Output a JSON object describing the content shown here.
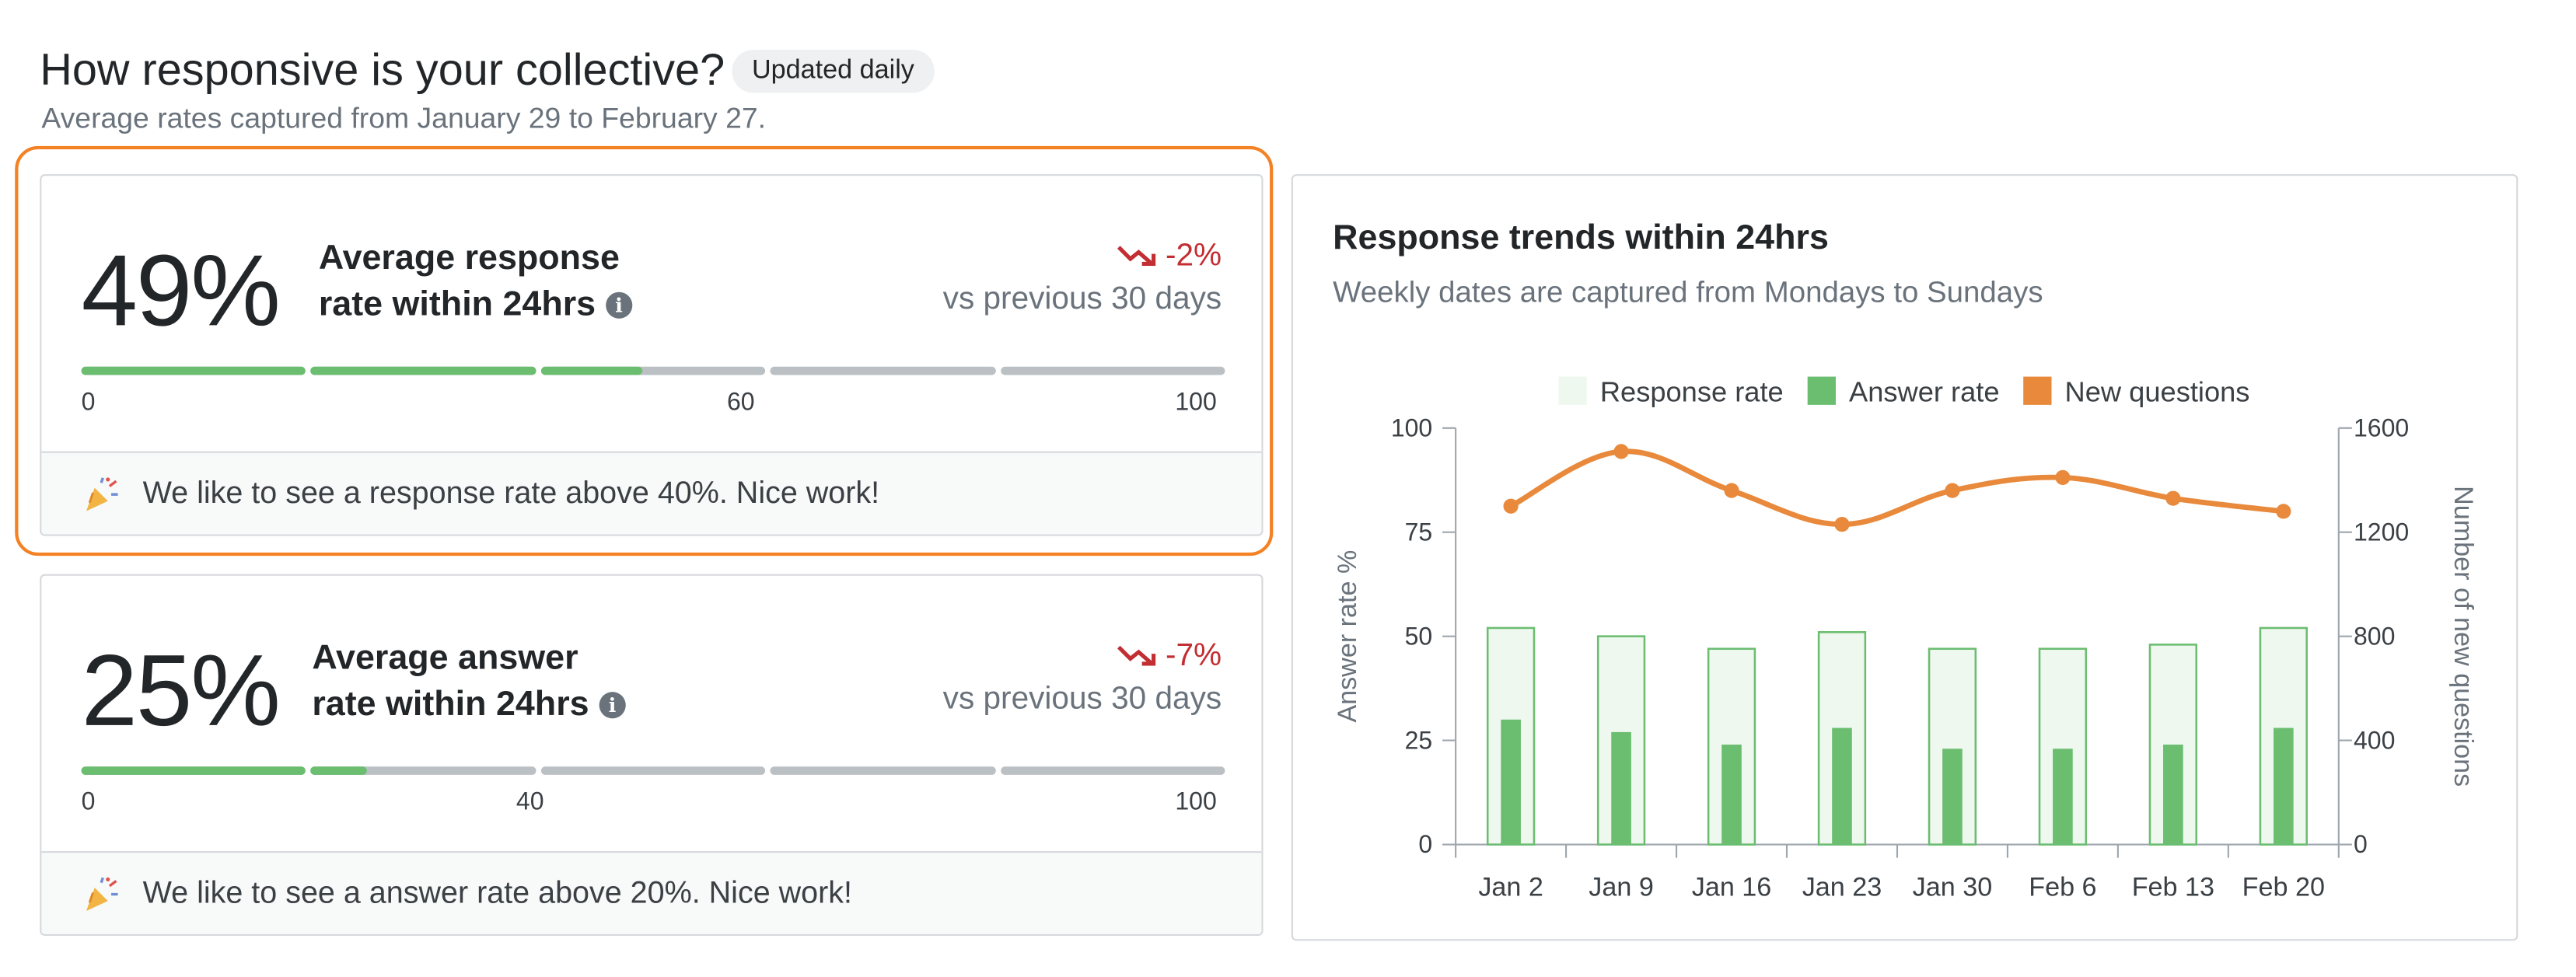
{
  "header": {
    "title": "How responsive is your collective?",
    "badge": "Updated daily",
    "subtitle": "Average rates captured from January 29 to February 27."
  },
  "stats": [
    {
      "value": "49%",
      "label_line1": "Average response",
      "label_line2": "rate within 24hrs",
      "delta": "-2%",
      "delta_caption": "vs previous 30 days",
      "progress_fraction": 0.49,
      "scale_start": "0",
      "scale_mid": "60",
      "scale_end": "100",
      "footer": "We like to see a response rate above 40%. Nice work!"
    },
    {
      "value": "25%",
      "label_line1": "Average answer",
      "label_line2": "rate within 24hrs",
      "delta": "-7%",
      "delta_caption": "vs previous 30 days",
      "progress_fraction": 0.25,
      "scale_start": "0",
      "scale_mid": "40",
      "scale_end": "100",
      "footer": "We like to see a answer rate above 20%. Nice work!"
    }
  ],
  "colors": {
    "accent_highlight": "#f48225",
    "response_fill": "#eef8ef",
    "response_stroke": "#6bbd70",
    "answer_bar": "#6bbd70",
    "new_questions_line": "#e8893c",
    "negative_delta": "#c22e32",
    "progress_track": "#bbc0c4"
  },
  "icons": {
    "info": "info-icon",
    "trend_down": "trend-down-icon",
    "party": "party-popper-icon"
  },
  "chart_data": {
    "type": "bar",
    "title": "Response trends within 24hrs",
    "subtitle": "Weekly dates are captured from Mondays to Sundays",
    "categories": [
      "Jan 2",
      "Jan 9",
      "Jan 16",
      "Jan 23",
      "Jan 30",
      "Feb 6",
      "Feb 13",
      "Feb 20"
    ],
    "series": [
      {
        "name": "Response rate",
        "type": "bar",
        "axis": "left",
        "values": [
          52,
          50,
          47,
          51,
          47,
          47,
          48,
          52
        ]
      },
      {
        "name": "Answer rate",
        "type": "bar",
        "axis": "left",
        "values": [
          30,
          27,
          24,
          28,
          23,
          23,
          24,
          28
        ]
      },
      {
        "name": "New questions",
        "type": "line",
        "axis": "right",
        "values": [
          1300,
          1510,
          1360,
          1230,
          1360,
          1410,
          1330,
          1280
        ]
      }
    ],
    "ylabel": "Answer rate %",
    "y2label": "Number of new questions",
    "ylim": [
      0,
      100
    ],
    "y2lim": [
      0,
      1600
    ],
    "yticks": [
      "0",
      "25",
      "50",
      "75",
      "100"
    ],
    "y2ticks": [
      "0",
      "400",
      "800",
      "1200",
      "1600"
    ],
    "legend_position": "top-center",
    "grid": false
  }
}
